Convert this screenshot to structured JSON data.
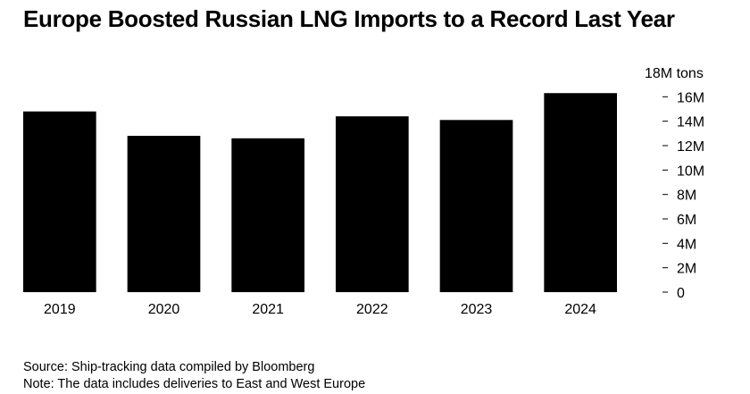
{
  "header": {
    "title": "Europe Boosted Russian LNG Imports to a Record Last Year"
  },
  "footer": {
    "source": "Source: Ship-tracking data compiled by Bloomberg",
    "note": "Note: The data includes deliveries to East and West Europe"
  },
  "chart_data": {
    "type": "bar",
    "title": "Europe Boosted Russian LNG Imports to a Record Last Year",
    "categories": [
      "2019",
      "2020",
      "2021",
      "2022",
      "2023",
      "2024"
    ],
    "values": [
      14.8,
      12.8,
      12.6,
      14.4,
      14.1,
      16.3
    ],
    "ylim": [
      0,
      18
    ],
    "unit": "M tons",
    "yticks": [
      0,
      2,
      4,
      6,
      8,
      10,
      12,
      14,
      16,
      18
    ],
    "ytick_labels": [
      "0",
      "2M",
      "4M",
      "6M",
      "8M",
      "10M",
      "12M",
      "14M",
      "16M",
      "18M tons"
    ],
    "y_axis_position": "right",
    "grid": false,
    "bar_color": "#000000"
  }
}
